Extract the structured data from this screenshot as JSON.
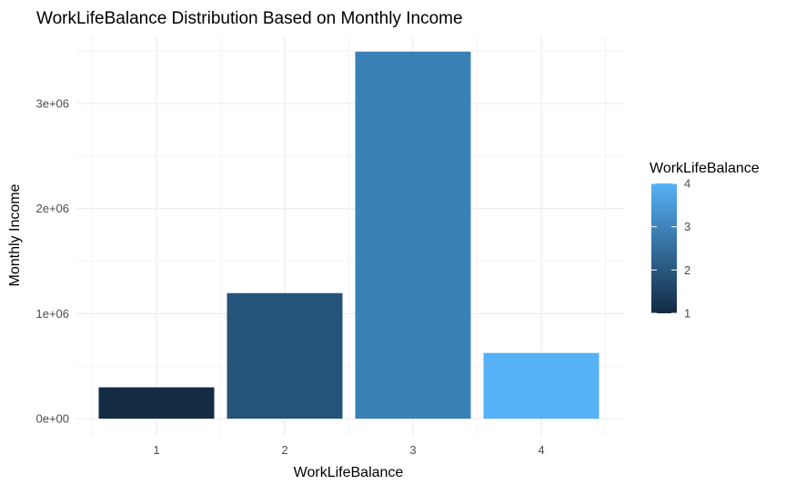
{
  "chart_data": {
    "type": "bar",
    "title": "WorkLifeBalance Distribution Based on Monthly Income",
    "xlabel": "WorkLifeBalance",
    "ylabel": "Monthly Income",
    "categories": [
      "1",
      "2",
      "3",
      "4"
    ],
    "values": [
      298000,
      1195000,
      3494000,
      625000
    ],
    "ylim": [
      -50000,
      3500000
    ],
    "yticks": [
      0,
      1000000,
      2000000,
      3000000
    ],
    "ytick_labels": [
      "0e+00",
      "1e+06",
      "2e+06",
      "3e+06"
    ],
    "grid": true,
    "legend": {
      "title": "WorkLifeBalance",
      "position": "right",
      "type": "colorbar",
      "ticks": [
        "1",
        "2",
        "3",
        "4"
      ],
      "range": [
        1,
        4
      ]
    },
    "colors": {
      "low": "#132b43",
      "high": "#56b1f7",
      "bars": [
        "#132b43",
        "#26537a",
        "#3a81b6",
        "#56b1f7"
      ]
    }
  }
}
